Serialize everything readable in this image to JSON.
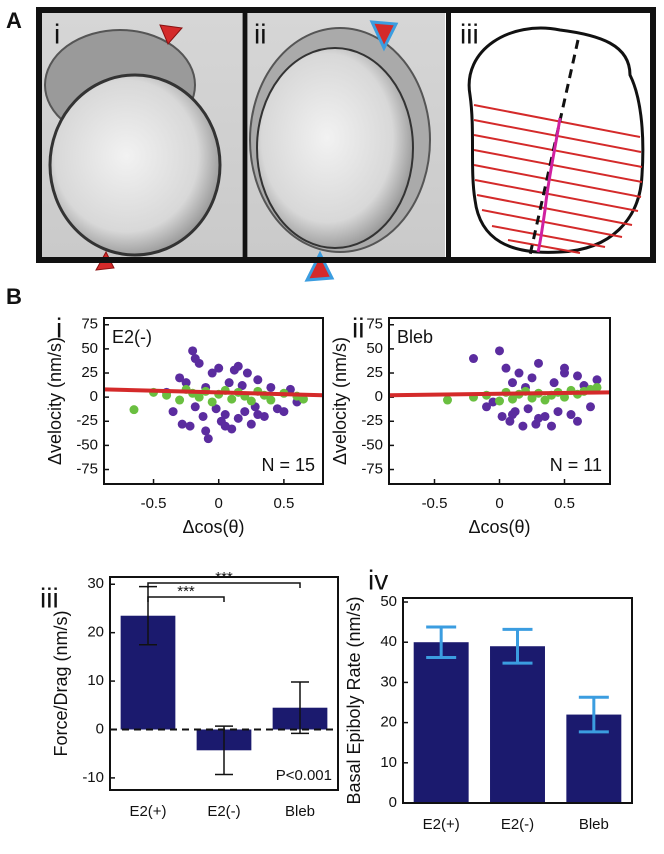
{
  "figure_labels": [
    "A",
    "B"
  ],
  "image_labels": [
    "i",
    "ii",
    "iii"
  ],
  "chart_data": [
    {
      "type": "scatter",
      "panel_label": "i",
      "condition_label": "E2(-)",
      "n_label": "N = 15",
      "x_label": "Δcos(θ)",
      "y_label": "Δvelocity (nm/s)",
      "xlim": [
        -0.88,
        0.8
      ],
      "ylim": [
        -90,
        82
      ],
      "xticks": [
        -0.5,
        0,
        0.5
      ],
      "yticks": [
        75,
        50,
        25,
        0,
        -25,
        -50,
        -75
      ],
      "series": [
        {
          "color": "#5b2c9f",
          "x": [
            -0.35,
            -0.3,
            -0.28,
            -0.25,
            -0.22,
            -0.2,
            -0.18,
            -0.15,
            -0.12,
            -0.1,
            -0.08,
            -0.05,
            -0.02,
            0,
            0.02,
            0.05,
            0.08,
            0.1,
            0.12,
            0.15,
            0.18,
            0.2,
            0.22,
            0.25,
            0.28,
            0.3,
            0.35,
            0.4,
            0.45,
            0.5,
            0.55,
            0.6,
            -0.4,
            -0.18,
            -0.1,
            0.05,
            0.15,
            0.3
          ],
          "values": [
            -15,
            20,
            -28,
            15,
            -30,
            48,
            -10,
            35,
            -20,
            10,
            -43,
            25,
            -12,
            30,
            -25,
            -18,
            15,
            -33,
            28,
            -22,
            12,
            -15,
            25,
            -28,
            -10,
            18,
            -20,
            10,
            -12,
            -15,
            8,
            -5,
            5,
            40,
            -35,
            -30,
            32,
            -18
          ]
        },
        {
          "color": "#6abf40",
          "x": [
            -0.65,
            -0.5,
            -0.4,
            -0.3,
            -0.25,
            -0.2,
            -0.15,
            -0.1,
            -0.05,
            0,
            0.05,
            0.1,
            0.15,
            0.2,
            0.25,
            0.3,
            0.35,
            0.4,
            0.5,
            0.6,
            0.65
          ],
          "values": [
            -13,
            5,
            2,
            -3,
            8,
            4,
            0,
            6,
            -5,
            3,
            7,
            -2,
            5,
            1,
            -4,
            6,
            2,
            -3,
            4,
            1,
            -2
          ]
        }
      ],
      "fit": {
        "color": "#d42a2a",
        "x": [
          -0.88,
          0.8
        ],
        "values": [
          8,
          2
        ]
      }
    },
    {
      "type": "scatter",
      "panel_label": "ii",
      "condition_label": "Bleb",
      "n_label": "N = 11",
      "x_label": "Δcos(θ)",
      "y_label": "Δvelocity (nm/s)",
      "xlim": [
        -0.85,
        0.85
      ],
      "ylim": [
        -90,
        82
      ],
      "xticks": [
        -0.5,
        0,
        0.5
      ],
      "yticks": [
        75,
        50,
        25,
        0,
        -25,
        -50,
        -75
      ],
      "series": [
        {
          "color": "#5b2c9f",
          "x": [
            -0.2,
            -0.1,
            0,
            0.02,
            0.05,
            0.08,
            0.1,
            0.12,
            0.15,
            0.18,
            0.2,
            0.22,
            0.25,
            0.28,
            0.3,
            0.35,
            0.4,
            0.42,
            0.45,
            0.5,
            0.55,
            0.6,
            0.65,
            0.7,
            0.75,
            -0.05,
            0.1,
            0.3,
            0.5,
            0.6
          ],
          "values": [
            40,
            -10,
            48,
            -20,
            30,
            -25,
            15,
            -15,
            25,
            -30,
            10,
            -12,
            20,
            -28,
            35,
            -20,
            -30,
            15,
            -15,
            25,
            -18,
            22,
            12,
            -10,
            18,
            -5,
            -18,
            -22,
            30,
            -25
          ]
        },
        {
          "color": "#6abf40",
          "x": [
            -0.4,
            -0.2,
            -0.1,
            0,
            0.05,
            0.1,
            0.15,
            0.2,
            0.25,
            0.3,
            0.35,
            0.4,
            0.45,
            0.5,
            0.55,
            0.6,
            0.65,
            0.7,
            0.75
          ],
          "values": [
            -3,
            0,
            2,
            -4,
            5,
            -2,
            3,
            6,
            -1,
            4,
            -3,
            2,
            5,
            0,
            7,
            3,
            6,
            8,
            10
          ]
        }
      ],
      "fit": {
        "color": "#d42a2a",
        "x": [
          -0.85,
          0.85
        ],
        "values": [
          2,
          5
        ]
      }
    },
    {
      "type": "bar",
      "panel_label": "iii",
      "y_label": "Force/Drag (nm/s)",
      "categories": [
        "E2(+)",
        "E2(-)",
        "Bleb"
      ],
      "values": [
        23.5,
        -4.3,
        4.5
      ],
      "errors": [
        6,
        5,
        5.3
      ],
      "color": "#1b1a6e",
      "error_color": "#111111",
      "ylim": [
        -12.5,
        31.5
      ],
      "yticks": [
        30,
        20,
        10,
        0,
        -10
      ],
      "zero_line": "dashed",
      "significance": [
        "***",
        "***"
      ],
      "p_value_text": "P<0.001"
    },
    {
      "type": "bar",
      "panel_label": "iv",
      "y_label": "Basal Epiboly Rate (nm/s)",
      "categories": [
        "E2(+)",
        "E2(-)",
        "Bleb"
      ],
      "values": [
        40,
        39,
        22
      ],
      "errors": [
        3.8,
        4.2,
        4.3
      ],
      "color": "#1b1a6e",
      "error_color": "#3b9de0",
      "ylim": [
        0,
        51
      ],
      "yticks": [
        0,
        10,
        20,
        30,
        40,
        50
      ]
    }
  ]
}
